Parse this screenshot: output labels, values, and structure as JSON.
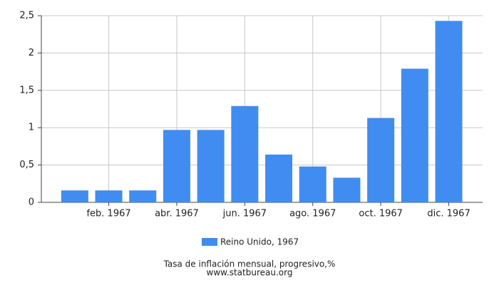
{
  "chart_data": {
    "type": "bar",
    "title": "Tasa de inflación mensual, progresivo,%",
    "source": "www.statbureau.org",
    "categories": [
      null,
      "feb. 1967",
      null,
      "abr. 1967",
      null,
      "jun. 1967",
      null,
      "ago. 1967",
      null,
      "oct. 1967",
      null,
      "dic. 1967"
    ],
    "series": [
      {
        "name": "Reino Unido, 1967",
        "color": "#418cf0",
        "values": [
          0.16,
          0.16,
          0.16,
          0.97,
          0.97,
          1.29,
          0.64,
          0.48,
          0.33,
          1.13,
          1.79,
          2.43
        ]
      }
    ],
    "ylim": [
      0,
      2.5
    ],
    "yticks": [
      0,
      {
        "value": 0.5,
        "label": "0,5"
      },
      1,
      {
        "value": 1.5,
        "label": "1,5"
      },
      2,
      {
        "value": 2.5,
        "label": "2,5"
      }
    ],
    "grid": true
  }
}
